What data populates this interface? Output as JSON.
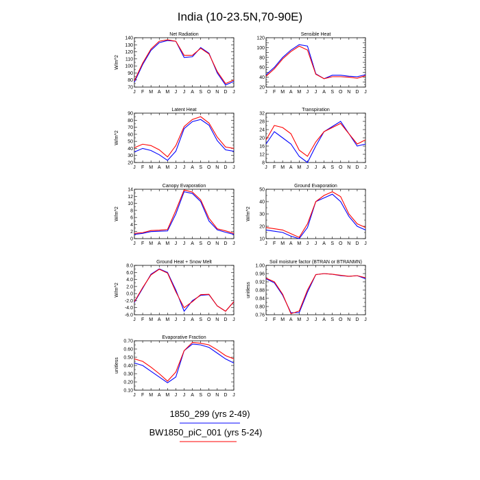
{
  "figure": {
    "title": "India (10-23.5N,70-90E)",
    "legend": [
      {
        "label": "1850_299 (yrs 2-49)",
        "color": "#0000ff"
      },
      {
        "label": "BW1850_piC_001 (yrs 5-24)",
        "color": "#ff0000"
      }
    ]
  },
  "chart_data": [
    {
      "type": "line",
      "title": "Net Radiation",
      "ylabel": "W/m^2",
      "categories": [
        "J",
        "F",
        "M",
        "A",
        "M",
        "J",
        "J",
        "A",
        "S",
        "O",
        "N",
        "D",
        "J"
      ],
      "ylim": [
        70,
        140
      ],
      "yticks": [
        70,
        80,
        90,
        100,
        110,
        120,
        130,
        140
      ],
      "ytick_labels": [
        "70",
        "80",
        "90",
        "100",
        "110",
        "120",
        "130",
        "140"
      ],
      "series": [
        {
          "color": "#0000ff",
          "values": [
            77,
            102,
            122,
            133,
            136,
            135,
            112,
            113,
            126,
            118,
            90,
            73,
            78
          ]
        },
        {
          "color": "#ff0000",
          "values": [
            79,
            104,
            124,
            135,
            137,
            135,
            115,
            115,
            125,
            117,
            92,
            75,
            80
          ]
        }
      ]
    },
    {
      "type": "line",
      "title": "Sensible Heat",
      "ylabel": "",
      "categories": [
        "J",
        "F",
        "M",
        "A",
        "M",
        "J",
        "J",
        "A",
        "S",
        "O",
        "N",
        "D",
        "J"
      ],
      "ylim": [
        20,
        120
      ],
      "yticks": [
        20,
        30,
        40,
        50,
        60,
        70,
        80,
        90,
        100,
        110,
        120
      ],
      "ytick_labels": [
        "20",
        "",
        "40",
        "",
        "60",
        "",
        "80",
        "",
        "100",
        "",
        "120"
      ],
      "series": [
        {
          "color": "#0000ff",
          "values": [
            45,
            60,
            80,
            95,
            106,
            103,
            47,
            37,
            44,
            44,
            42,
            41,
            45
          ]
        },
        {
          "color": "#ff0000",
          "values": [
            42,
            57,
            77,
            92,
            103,
            95,
            46,
            37,
            41,
            41,
            40,
            38,
            43
          ]
        }
      ]
    },
    {
      "type": "line",
      "title": "Latent Heat",
      "ylabel": "W/m^2",
      "categories": [
        "J",
        "F",
        "M",
        "A",
        "M",
        "J",
        "J",
        "A",
        "S",
        "O",
        "N",
        "D",
        "J"
      ],
      "ylim": [
        20,
        90
      ],
      "yticks": [
        20,
        30,
        40,
        50,
        60,
        70,
        80,
        90
      ],
      "ytick_labels": [
        "20",
        "30",
        "40",
        "50",
        "60",
        "70",
        "80",
        "90"
      ],
      "series": [
        {
          "color": "#0000ff",
          "values": [
            35,
            40,
            37,
            31,
            23,
            36,
            68,
            78,
            81,
            73,
            51,
            38,
            36
          ]
        },
        {
          "color": "#ff0000",
          "values": [
            41,
            46,
            44,
            38,
            28,
            44,
            71,
            81,
            85,
            76,
            56,
            42,
            40
          ]
        }
      ]
    },
    {
      "type": "line",
      "title": "Transpiration",
      "ylabel": "",
      "categories": [
        "J",
        "F",
        "M",
        "A",
        "M",
        "J",
        "J",
        "A",
        "S",
        "O",
        "N",
        "D",
        "J"
      ],
      "ylim": [
        8,
        32
      ],
      "yticks": [
        8,
        12,
        16,
        20,
        24,
        28,
        32
      ],
      "ytick_labels": [
        "8",
        "12",
        "16",
        "20",
        "24",
        "28",
        "32"
      ],
      "series": [
        {
          "color": "#0000ff",
          "values": [
            17,
            23,
            20,
            17,
            11,
            8,
            16,
            23,
            25.5,
            28,
            22,
            16,
            17
          ]
        },
        {
          "color": "#ff0000",
          "values": [
            19,
            26,
            25,
            22,
            14,
            11,
            18,
            23,
            25,
            27,
            22,
            17,
            19
          ]
        }
      ]
    },
    {
      "type": "line",
      "title": "Canopy Evaporation",
      "ylabel": "W/m^2",
      "categories": [
        "J",
        "F",
        "M",
        "A",
        "M",
        "J",
        "J",
        "A",
        "S",
        "O",
        "N",
        "D",
        "J"
      ],
      "ylim": [
        0,
        14
      ],
      "yticks": [
        0,
        2,
        4,
        6,
        8,
        10,
        12,
        14
      ],
      "ytick_labels": [
        "0",
        "2",
        "4",
        "6",
        "8",
        "10",
        "12",
        "14"
      ],
      "series": [
        {
          "color": "#0000ff",
          "values": [
            1.2,
            1.5,
            2.0,
            2.1,
            2.2,
            7.0,
            13.3,
            12.8,
            10.5,
            5.0,
            2.5,
            1.8,
            1.2
          ]
        },
        {
          "color": "#ff0000",
          "values": [
            1.5,
            1.7,
            2.3,
            2.4,
            2.6,
            8.0,
            13.8,
            13.2,
            11.0,
            5.8,
            2.8,
            2.2,
            1.5
          ]
        }
      ]
    },
    {
      "type": "line",
      "title": "Ground Evaporation",
      "ylabel": "W/m^2",
      "categories": [
        "J",
        "F",
        "M",
        "A",
        "M",
        "J",
        "J",
        "A",
        "S",
        "O",
        "N",
        "D",
        "J"
      ],
      "ylim": [
        10,
        50
      ],
      "yticks": [
        10,
        20,
        30,
        40,
        50
      ],
      "ytick_labels": [
        "10",
        "20",
        "30",
        "40",
        "50"
      ],
      "series": [
        {
          "color": "#0000ff",
          "values": [
            17,
            16,
            15,
            12,
            10,
            19,
            40,
            43,
            46,
            40,
            28,
            20,
            17
          ]
        },
        {
          "color": "#ff0000",
          "values": [
            19,
            18,
            17,
            14,
            11,
            22,
            40,
            45,
            48,
            44,
            30,
            22,
            19
          ]
        }
      ]
    },
    {
      "type": "line",
      "title": "Ground Heat + Snow Melt",
      "ylabel": "W/m^2",
      "categories": [
        "J",
        "F",
        "M",
        "A",
        "M",
        "J",
        "J",
        "A",
        "S",
        "O",
        "N",
        "D",
        "J"
      ],
      "ylim": [
        -6,
        8
      ],
      "yticks": [
        -6,
        -4,
        -2,
        0,
        2,
        4,
        6,
        8
      ],
      "ytick_labels": [
        "-6.0",
        "-4.0",
        "-2.0",
        "0.0",
        "2.0",
        "4.0",
        "6.0",
        "8.0"
      ],
      "series": [
        {
          "color": "#0000ff",
          "values": [
            -2.5,
            1.5,
            5.5,
            7.0,
            6.0,
            1.0,
            -5.0,
            -2.0,
            -0.5,
            -0.3,
            -3.5,
            -5.0,
            -2.3
          ]
        },
        {
          "color": "#ff0000",
          "values": [
            -2.3,
            1.7,
            5.3,
            6.9,
            5.8,
            0.5,
            -4.0,
            -2.3,
            -0.3,
            -0.2,
            -3.5,
            -5.0,
            -2.3
          ]
        }
      ]
    },
    {
      "type": "line",
      "title": "Soil moisture factor (BTRAN or BTRANMN)",
      "ylabel": "unitless",
      "categories": [
        "J",
        "F",
        "M",
        "A",
        "M",
        "J",
        "J",
        "A",
        "S",
        "O",
        "N",
        "D",
        "J"
      ],
      "ylim": [
        0.76,
        1.0
      ],
      "yticks": [
        0.76,
        0.8,
        0.84,
        0.88,
        0.92,
        0.96,
        1.0
      ],
      "ytick_labels": [
        "0.76",
        "0.80",
        "0.84",
        "0.88",
        "0.92",
        "0.96",
        "1.00"
      ],
      "series": [
        {
          "color": "#0000ff",
          "values": [
            0.935,
            0.915,
            0.855,
            0.77,
            0.77,
            0.87,
            0.955,
            0.96,
            0.957,
            0.95,
            0.947,
            0.95,
            0.935
          ]
        },
        {
          "color": "#ff0000",
          "values": [
            0.938,
            0.92,
            0.86,
            0.765,
            0.778,
            0.88,
            0.955,
            0.96,
            0.957,
            0.952,
            0.947,
            0.95,
            0.94
          ]
        }
      ]
    },
    {
      "type": "line",
      "title": "Evaporative Fraction",
      "ylabel": "unitless",
      "categories": [
        "J",
        "F",
        "M",
        "A",
        "M",
        "J",
        "J",
        "A",
        "S",
        "O",
        "N",
        "D",
        "J"
      ],
      "ylim": [
        0.1,
        0.7
      ],
      "yticks": [
        0.1,
        0.2,
        0.3,
        0.4,
        0.5,
        0.6,
        0.7
      ],
      "ytick_labels": [
        "0.10",
        "0.20",
        "0.30",
        "0.40",
        "0.50",
        "0.60",
        "0.70"
      ],
      "series": [
        {
          "color": "#0000ff",
          "values": [
            0.43,
            0.4,
            0.33,
            0.26,
            0.19,
            0.26,
            0.58,
            0.66,
            0.65,
            0.62,
            0.55,
            0.48,
            0.43
          ]
        },
        {
          "color": "#ff0000",
          "values": [
            0.48,
            0.45,
            0.38,
            0.3,
            0.21,
            0.32,
            0.58,
            0.68,
            0.67,
            0.65,
            0.59,
            0.52,
            0.48
          ]
        }
      ]
    }
  ]
}
